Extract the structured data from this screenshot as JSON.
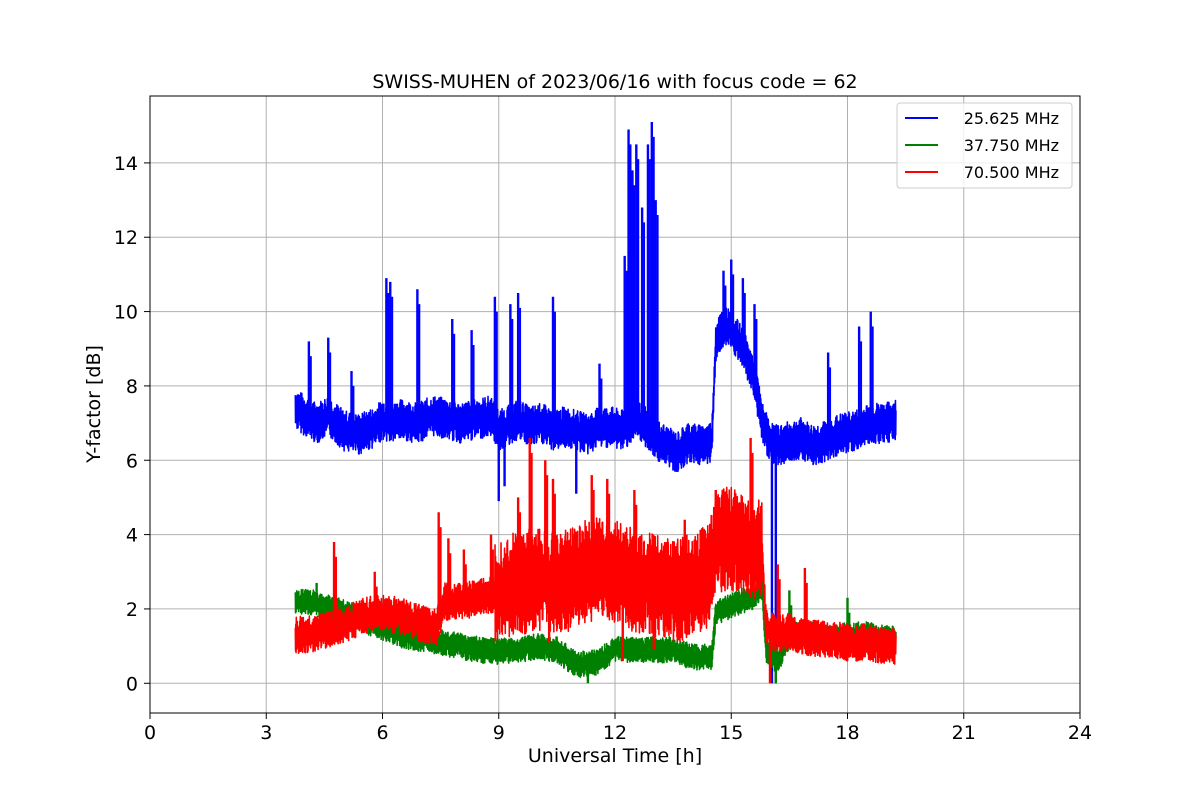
{
  "chart_data": {
    "type": "line",
    "title": "SWISS-MUHEN of 2023/06/16 with focus code = 62",
    "xlabel": "Universal Time [h]",
    "ylabel": "Y-factor [dB]",
    "xlim": [
      0,
      24
    ],
    "ylim": [
      -0.8,
      15.8
    ],
    "xticks": [
      0,
      3,
      6,
      9,
      12,
      15,
      18,
      21,
      24
    ],
    "yticks": [
      0,
      2,
      4,
      6,
      8,
      10,
      12,
      14
    ],
    "grid": true,
    "legend_position": "top-right",
    "series": [
      {
        "name": "25.625 MHz",
        "color": "#0000ff",
        "x": [
          3.75,
          4.0,
          4.3,
          4.6,
          5.0,
          5.4,
          5.8,
          6.0,
          6.2,
          6.5,
          6.9,
          7.3,
          7.7,
          8.0,
          8.4,
          8.8,
          9.0,
          9.2,
          9.5,
          9.8,
          10.1,
          10.4,
          10.7,
          11.0,
          11.3,
          11.6,
          11.9,
          12.2,
          12.5,
          12.8,
          13.0,
          13.3,
          13.6,
          13.9,
          14.2,
          14.5,
          14.6,
          14.8,
          15.0,
          15.3,
          15.6,
          15.8,
          16.0,
          16.2,
          16.5,
          16.8,
          17.1,
          17.4,
          17.8,
          18.2,
          18.6,
          19.0,
          19.25
        ],
        "y": [
          7.4,
          7.2,
          7.0,
          7.2,
          6.8,
          6.7,
          6.9,
          7.1,
          7.0,
          7.1,
          7.0,
          7.2,
          7.1,
          7.0,
          7.1,
          7.2,
          6.8,
          6.9,
          7.1,
          6.9,
          7.0,
          6.8,
          6.9,
          6.8,
          6.7,
          6.9,
          6.9,
          6.8,
          7.1,
          6.9,
          6.6,
          6.4,
          6.2,
          6.5,
          6.4,
          6.5,
          9.2,
          9.6,
          9.5,
          9.0,
          8.2,
          7.0,
          6.5,
          6.4,
          6.5,
          6.6,
          6.4,
          6.5,
          6.7,
          6.8,
          7.0,
          7.0,
          7.1
        ],
        "spikes": [
          [
            4.1,
            9.2
          ],
          [
            4.6,
            9.3
          ],
          [
            5.2,
            8.4
          ],
          [
            6.1,
            10.9
          ],
          [
            6.2,
            10.8
          ],
          [
            6.9,
            10.6
          ],
          [
            7.8,
            9.8
          ],
          [
            8.3,
            9.5
          ],
          [
            8.9,
            10.4
          ],
          [
            9.3,
            10.2
          ],
          [
            9.5,
            10.5
          ],
          [
            10.4,
            10.4
          ],
          [
            11.6,
            8.6
          ],
          [
            12.25,
            11.5
          ],
          [
            12.35,
            14.9
          ],
          [
            12.45,
            13.8
          ],
          [
            12.55,
            14.5
          ],
          [
            12.7,
            12.8
          ],
          [
            12.85,
            14.5
          ],
          [
            12.95,
            15.1
          ],
          [
            13.05,
            13.0
          ],
          [
            14.8,
            11.1
          ],
          [
            15.0,
            11.4
          ],
          [
            15.3,
            10.9
          ],
          [
            15.6,
            10.2
          ],
          [
            17.5,
            8.9
          ],
          [
            18.3,
            9.6
          ],
          [
            18.6,
            10.0
          ]
        ],
        "dips": [
          [
            9.0,
            4.9
          ],
          [
            9.15,
            5.3
          ],
          [
            11.0,
            5.1
          ],
          [
            16.05,
            0.0
          ],
          [
            16.15,
            0.0
          ]
        ]
      },
      {
        "name": "37.750 MHz",
        "color": "#008000",
        "x": [
          3.75,
          4.0,
          4.5,
          5.0,
          5.5,
          6.0,
          6.5,
          7.0,
          7.5,
          8.0,
          8.5,
          9.0,
          9.5,
          10.0,
          10.5,
          11.0,
          11.5,
          12.0,
          12.5,
          13.0,
          13.5,
          14.0,
          14.5,
          14.6,
          15.0,
          15.5,
          15.8,
          15.9,
          16.2,
          16.5,
          17.0,
          17.5,
          18.0,
          18.5,
          19.0,
          19.25
        ],
        "y": [
          2.2,
          2.2,
          2.1,
          1.9,
          1.7,
          1.5,
          1.3,
          1.2,
          1.1,
          1.0,
          0.9,
          0.85,
          0.9,
          1.0,
          0.9,
          0.5,
          0.55,
          0.9,
          0.9,
          0.9,
          0.9,
          0.7,
          0.7,
          1.9,
          2.1,
          2.3,
          2.5,
          0.9,
          0.6,
          1.3,
          1.3,
          1.2,
          1.3,
          1.3,
          1.2,
          1.2
        ],
        "spikes": [
          [
            18.0,
            2.3
          ],
          [
            16.5,
            2.5
          ],
          [
            4.3,
            2.7
          ]
        ],
        "dips": [
          [
            16.15,
            0.0
          ],
          [
            11.3,
            0.0
          ]
        ]
      },
      {
        "name": "70.500 MHz",
        "color": "#ff0000",
        "x": [
          3.75,
          4.0,
          4.5,
          5.0,
          5.5,
          6.0,
          6.5,
          7.0,
          7.4,
          7.6,
          8.0,
          8.5,
          8.9,
          9.2,
          9.6,
          10.0,
          10.4,
          10.8,
          11.2,
          11.6,
          12.0,
          12.4,
          12.8,
          13.2,
          13.6,
          14.0,
          14.4,
          14.6,
          15.0,
          15.4,
          15.8,
          15.9,
          16.2,
          16.5,
          17.0,
          17.5,
          18.0,
          18.5,
          19.0,
          19.25
        ],
        "y": [
          1.3,
          1.3,
          1.4,
          1.6,
          1.8,
          1.9,
          1.8,
          1.6,
          1.5,
          2.2,
          2.2,
          2.3,
          2.4,
          2.6,
          2.7,
          2.8,
          2.7,
          2.8,
          3.0,
          3.1,
          3.0,
          2.8,
          2.7,
          2.6,
          2.5,
          2.6,
          2.9,
          3.8,
          3.9,
          3.7,
          3.5,
          1.5,
          1.3,
          1.4,
          1.2,
          1.2,
          1.1,
          1.1,
          1.0,
          1.0
        ],
        "spikes": [
          [
            4.75,
            3.8
          ],
          [
            5.8,
            3.0
          ],
          [
            7.45,
            4.6
          ],
          [
            7.7,
            3.9
          ],
          [
            8.1,
            3.6
          ],
          [
            8.8,
            4.0
          ],
          [
            9.5,
            5.0
          ],
          [
            9.8,
            6.6
          ],
          [
            10.2,
            6.0
          ],
          [
            10.4,
            5.5
          ],
          [
            11.4,
            5.6
          ],
          [
            11.8,
            5.5
          ],
          [
            12.5,
            5.2
          ],
          [
            13.8,
            4.4
          ],
          [
            14.6,
            5.2
          ],
          [
            15.1,
            5.1
          ],
          [
            15.5,
            6.6
          ],
          [
            16.9,
            3.1
          ],
          [
            16.2,
            3.2
          ]
        ],
        "dips": [
          [
            10.3,
            1.1
          ],
          [
            12.2,
            0.6
          ],
          [
            13.0,
            0.9
          ],
          [
            16.0,
            0.0
          ]
        ]
      }
    ]
  }
}
